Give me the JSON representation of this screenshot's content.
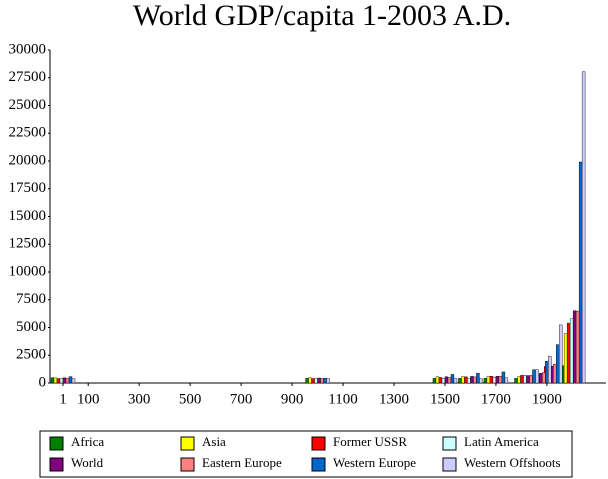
{
  "chart_data": {
    "type": "bar",
    "title": "World GDP/capita 1-2003 A.D.",
    "x": [
      1,
      1000,
      1500,
      1600,
      1700,
      1820,
      1870,
      1913,
      2003
    ],
    "xlim": [
      -50,
      2132
    ],
    "xticks": [
      1,
      100,
      300,
      500,
      700,
      900,
      1100,
      1300,
      1500,
      1700,
      1900
    ],
    "ylim": [
      0,
      30000
    ],
    "yticks": [
      0,
      2500,
      5000,
      7500,
      10000,
      12500,
      15000,
      17500,
      20000,
      22500,
      25000,
      27500,
      30000
    ],
    "series": [
      {
        "name": "Africa",
        "color": "#008000",
        "values": [
          472,
          425,
          414,
          422,
          421,
          420,
          500,
          637,
          1549
        ]
      },
      {
        "name": "Asia",
        "color": "#ffff00",
        "values": [
          456,
          465,
          568,
          574,
          572,
          577,
          550,
          658,
          4434
        ]
      },
      {
        "name": "Former USSR",
        "color": "#ff0000",
        "values": [
          400,
          400,
          499,
          552,
          610,
          688,
          943,
          1488,
          5397
        ]
      },
      {
        "name": "Latin America",
        "color": "#ccffff",
        "values": [
          400,
          400,
          416,
          438,
          527,
          692,
          681,
          1481,
          5786
        ]
      },
      {
        "name": "World",
        "color": "#800080",
        "values": [
          467,
          450,
          566,
          596,
          615,
          667,
          873,
          1526,
          6516
        ]
      },
      {
        "name": "Eastern Europe",
        "color": "#ff8080",
        "values": [
          412,
          400,
          496,
          548,
          606,
          683,
          937,
          1695,
          6476
        ]
      },
      {
        "name": "Western Europe",
        "color": "#0066cc",
        "values": [
          576,
          427,
          771,
          889,
          997,
          1202,
          1960,
          3458,
          19912
        ]
      },
      {
        "name": "Western Offshoots",
        "color": "#ccccff",
        "values": [
          400,
          400,
          400,
          400,
          476,
          1202,
          2419,
          5233,
          28039
        ]
      }
    ]
  }
}
